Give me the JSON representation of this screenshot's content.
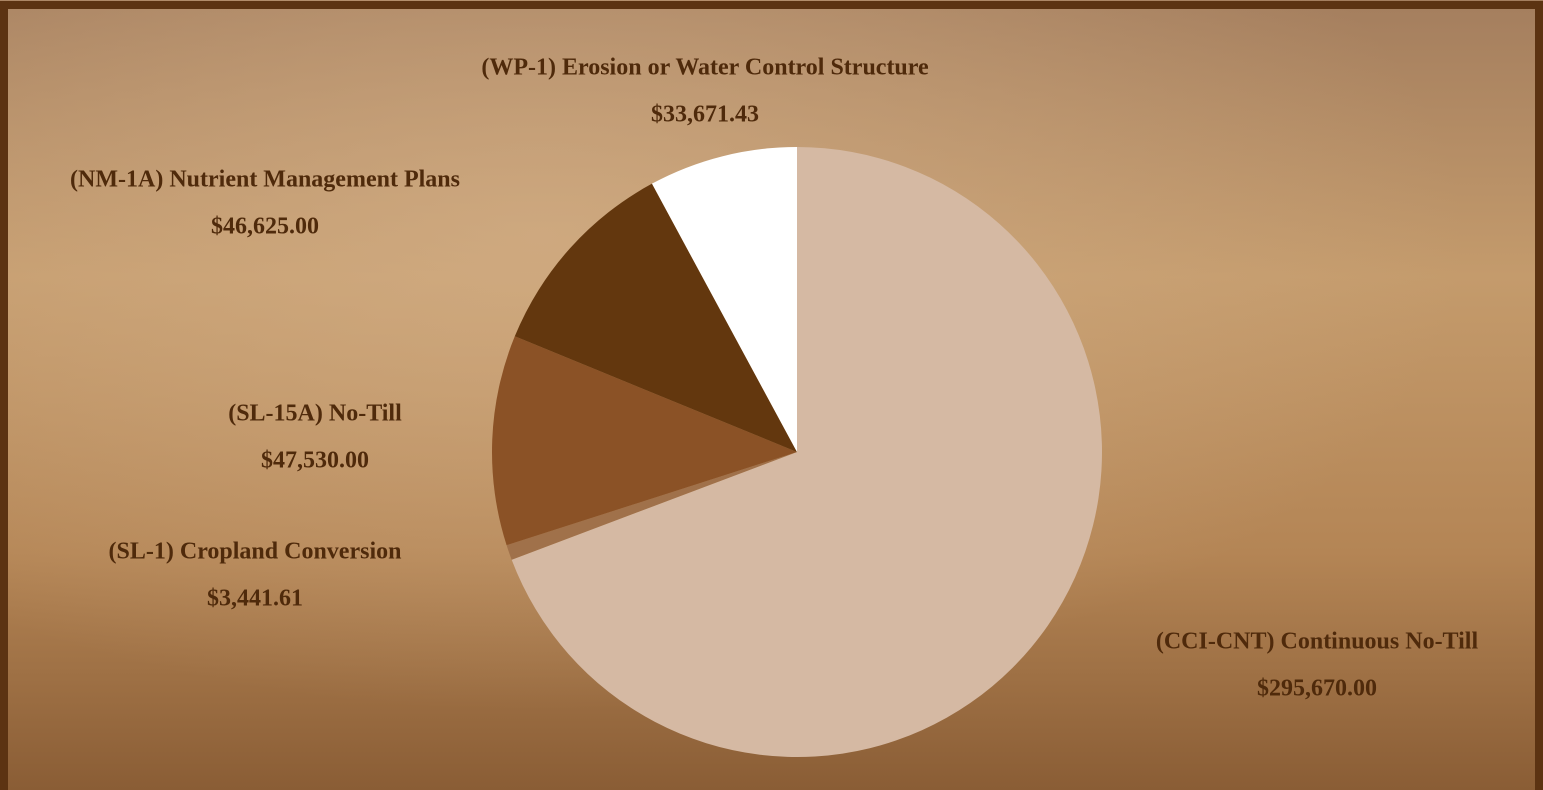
{
  "chart_data": {
    "type": "pie",
    "categories": [
      "(CCI-CNT) Continuous No-Till",
      "(SL-1) Cropland Conversion",
      "(SL-15A) No-Till",
      "(NM-1A) Nutrient Management Plans",
      "(WP-1) Erosion or Water Control Structure"
    ],
    "values": [
      295670.0,
      3441.61,
      47530.0,
      46625.0,
      33671.43
    ],
    "value_labels": [
      "$295,670.00",
      "$3,441.61",
      "$47,530.00",
      "$46,625.00",
      "$33,671.43"
    ],
    "colors": [
      "#d5b9a3",
      "#a0714a",
      "#8b5226",
      "#63370e",
      "#ffffff"
    ]
  }
}
